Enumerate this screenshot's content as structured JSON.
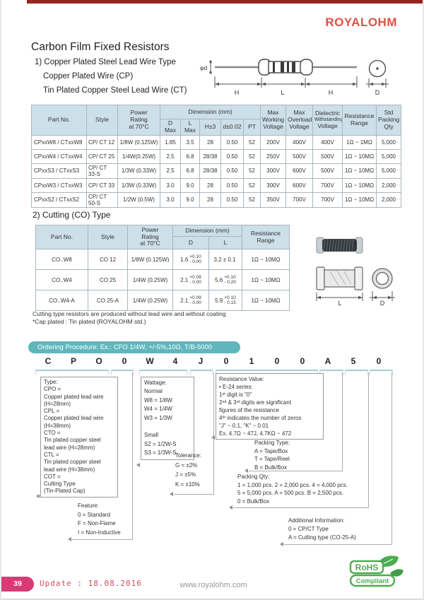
{
  "brand": "ROYALOHM",
  "title": "Carbon Film Fixed Resistors",
  "section1": {
    "line1": "1) Copper Plated Steel Lead Wire Type",
    "line2": "Copper Plated Wire (CP)",
    "line3": "Tin Plated Copper Steel Lead Wire (CT)"
  },
  "diagram1": {
    "phi_d": "φd",
    "h1": "H",
    "l": "L",
    "h2": "H",
    "d": "D"
  },
  "table1": {
    "headers": {
      "part": "Part No.",
      "style": "Style",
      "power": "Power\nRating\nat 70°C",
      "dimension": "Dimension (mm)",
      "dim_cols": [
        "D Max",
        "L Max",
        "H±3",
        "d±0.02",
        "PT"
      ],
      "working": "Max\nWorking\nVoltage",
      "overload": "Max\nOverload\nVoltage",
      "dielectric_1": "Dielectric",
      "dielectric_2": "Withstanding",
      "dielectric_3": "Voltage",
      "range": "Resistance\nRange",
      "packing": "Std\nPacking\nQty"
    },
    "rows": [
      [
        "CPxxW8 / CTxxW8",
        "CP/ CT 12",
        "1/8W (0.125W)",
        "1.85",
        "3.5",
        "28",
        "0.50",
        "52",
        "200V",
        "400V",
        "400V",
        "1Ω ~ 1MΩ",
        "5,000"
      ],
      [
        "CPxxW4 / CTxxW4",
        "CP/ CT 25",
        "1/4W(0.25W)",
        "2.5",
        "6.8",
        "28/38",
        "0.50",
        "52",
        "250V",
        "500V",
        "500V",
        "1Ω ~ 10MΩ",
        "5,000"
      ],
      [
        "CPxxS3 / CTxxS3",
        "CP/ CT 33-S",
        "1/3W (0.33W)",
        "2.5",
        "6.8",
        "28/38",
        "0.50",
        "52",
        "300V",
        "600V",
        "500V",
        "1Ω ~ 10MΩ",
        "5,000"
      ],
      [
        "CPxxW3 / CTxxW3",
        "CP/ CT 33",
        "1/3W (0.33W)",
        "3.0",
        "9.0",
        "28",
        "0.50",
        "52",
        "300V",
        "600V",
        "700V",
        "1Ω ~ 10MΩ",
        "2,000"
      ],
      [
        "CPxxS2 / CTxxS2",
        "CP/ CT 50-S",
        "1/2W (0.5W)",
        "3.0",
        "9.0",
        "28",
        "0.50",
        "52",
        "350V",
        "700V",
        "700V",
        "1Ω ~ 10MΩ",
        "2,000"
      ]
    ]
  },
  "section2": {
    "heading": "2) Cutting (CO) Type"
  },
  "table2": {
    "headers": {
      "part": "Part No.",
      "style": "Style",
      "power": "Power\nRating\nat 70°C",
      "dimension": "Dimension (mm)",
      "d": "D",
      "l": "L",
      "range": "Resistance\nRange"
    },
    "rows": [
      {
        "part": "CO..W8",
        "style": "CO 12",
        "power": "1/8W (0.125W)",
        "d": "1.6",
        "d_top": "+0.10",
        "d_bot": "- 0.00",
        "l": "3.2 ± 0.1",
        "l_top": "",
        "l_bot": "",
        "range": "1Ω ~ 10MΩ"
      },
      {
        "part": "CO..W4",
        "style": "CO 25",
        "power": "1/4W (0.25W)",
        "d": "2.1",
        "d_top": "+0.09",
        "d_bot": "- 0.00",
        "l": "5.6",
        "l_top": "+0.10",
        "l_bot": "- 0.20",
        "range": "1Ω ~ 10MΩ"
      },
      {
        "part": "CO..W4-A",
        "style": "CO 25-A",
        "power": "1/4W (0.25W)",
        "d": "2.1",
        "d_top": "+0.09",
        "d_bot": "- 0.00",
        "l": "5.9",
        "l_top": "+0.10",
        "l_bot": "- 0.15",
        "range": "1Ω ~ 10MΩ"
      }
    ]
  },
  "diagram2": {
    "l": "L",
    "d": "D"
  },
  "notes": {
    "line1": "Cutting type resistors are produced without lead wire and without coating",
    "line2": "*Cap plated : Tin plated (ROYALOHM std.)"
  },
  "ordering": {
    "header": "Ordering Procedure: Ex.: CFO 1/4W, +/-5%,10Ω, T/B-5000",
    "code": [
      "C",
      "P",
      "O",
      "0",
      "W",
      "4",
      "J",
      "0",
      "1",
      "0",
      "0",
      "A",
      "5",
      "0"
    ],
    "type_box": {
      "title": "Type:",
      "lines": [
        "CPO =",
        "Copper plated lead wire",
        "(H=28mm)",
        "CPL =",
        "Copper plated lead wire",
        "(H=38mm)",
        "CTO =",
        "Tin plated copper steel",
        "lead wire (H=28mm)",
        "CTL =",
        "Tin plated copper steel",
        "lead wire (H=38mm)",
        "COT =",
        "Cutting Type",
        "(Tin-Plated Cap)"
      ]
    },
    "feature_box": {
      "title": "Feature:",
      "lines": [
        "0 = Standard",
        "F = Non-Flame",
        "I = Non-Inductive"
      ]
    },
    "wattage_box": {
      "title": "Wattage:",
      "lines": [
        "Normal",
        "W8 = 1/8W",
        "W4 = 1/4W",
        "W3 = 1/3W",
        " ",
        "Small",
        "S2 = 1/2W-S",
        "S3 = 1/3W-S"
      ]
    },
    "tolerance_box": {
      "title": "Tolerance:",
      "lines": [
        "G = ±2%",
        "J =  ±5%",
        "K = ±10%"
      ]
    },
    "resistance_box": {
      "title": "Resistance Value:",
      "lines": [
        "•  E-24 series:",
        "1ˢᵗ digit is \"0\"",
        "2ⁿᵈ & 3ʳᵈ digits are significant",
        "figures of the resistance",
        "4ᵗʰ indicates the number of zeros",
        "\"J\" ~ 0.1, \"K\" ~ 0.01",
        "Ex. 4.7Ω ~ 47J, 4.7KΩ ~ 472"
      ]
    },
    "packing_type_box": {
      "title": "Packing Type:",
      "lines": [
        "A = Tape/Box",
        "T = Tape/Reel",
        "B = Bulk/Box"
      ]
    },
    "packing_qty_box": {
      "title": "Packing Qty:",
      "lines": [
        "1 = 1,000 pcs.  2 = 2,000 pcs.  4 = 4,000 pcs.",
        "5 = 5,000 pcs.  A = 500 pcs.    B = 2,500 pcs.",
        "0 = Bulk/Box"
      ]
    },
    "additional_box": {
      "title": "Additional Information:",
      "lines": [
        "0 = CP/CT Type",
        "A = Cutting type (CO-25-A)"
      ]
    }
  },
  "footer": {
    "page_no": "39",
    "update": "Update : 18.08.2016",
    "website": "www.royalohm.com",
    "rohs_top": "RoHS",
    "rohs_bottom": "Compliant"
  },
  "colors": {
    "accent_red": "#96251f",
    "brand_red": "#dd5245",
    "table_header_bg": "#cddfe9",
    "ordering_teal": "#5fb7bd",
    "footer_pink": "#d83a76",
    "rohs_green": "#4bad4f"
  }
}
